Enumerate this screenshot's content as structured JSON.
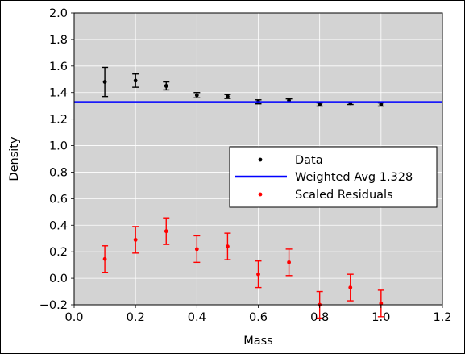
{
  "chart_data": {
    "type": "scatter",
    "xlabel": "Mass",
    "ylabel": "Density",
    "xlim": [
      0.0,
      1.2
    ],
    "ylim": [
      -0.2,
      2.0
    ],
    "xticks": [
      "0.0",
      "0.2",
      "0.4",
      "0.6",
      "0.8",
      "1.0",
      "1.2"
    ],
    "yticks": [
      "−0.2",
      "0.0",
      "0.2",
      "0.4",
      "0.6",
      "0.8",
      "1.0",
      "1.2",
      "1.4",
      "1.6",
      "1.8",
      "2.0"
    ],
    "grid": true,
    "background": "#d3d3d3",
    "legend_position": "center-right",
    "series": [
      {
        "name": "Data",
        "color": "#000000",
        "marker": "point",
        "x": [
          0.1,
          0.2,
          0.3,
          0.4,
          0.5,
          0.6,
          0.7,
          0.8,
          0.9,
          1.0
        ],
        "y": [
          1.48,
          1.49,
          1.45,
          1.38,
          1.37,
          1.33,
          1.34,
          1.31,
          1.32,
          1.31
        ],
        "yerr": [
          0.11,
          0.05,
          0.03,
          0.02,
          0.015,
          0.015,
          0.012,
          0.012,
          0.01,
          0.012
        ]
      },
      {
        "name": "Weighted Avg 1.328",
        "color": "#0000ff",
        "type": "hline",
        "y": 1.328
      },
      {
        "name": "Scaled Residuals",
        "color": "#ff0000",
        "marker": "point",
        "x": [
          0.1,
          0.2,
          0.3,
          0.4,
          0.5,
          0.6,
          0.7,
          0.8,
          0.9,
          1.0
        ],
        "y": [
          0.145,
          0.29,
          0.355,
          0.22,
          0.24,
          0.03,
          0.12,
          -0.2,
          -0.07,
          -0.19
        ],
        "yerr": [
          0.1,
          0.1,
          0.1,
          0.1,
          0.1,
          0.1,
          0.1,
          0.1,
          0.1,
          0.1
        ]
      }
    ]
  }
}
